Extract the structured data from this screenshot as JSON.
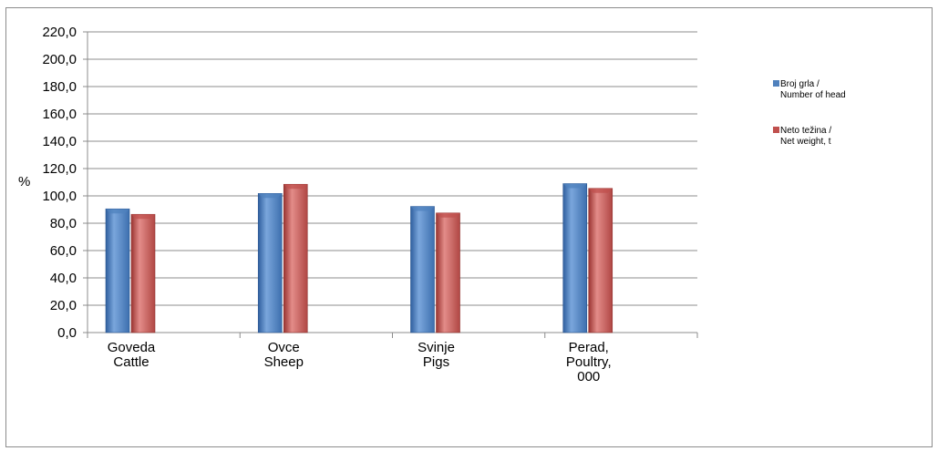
{
  "chart_data": {
    "type": "bar",
    "ylabel": "%",
    "ylim": [
      0,
      220
    ],
    "ytick_step": 20,
    "ytick_labels": [
      "0,0",
      "20,0",
      "40,0",
      "60,0",
      "80,0",
      "100,0",
      "120,0",
      "140,0",
      "160,0",
      "180,0",
      "200,0",
      "220,0"
    ],
    "grid": true,
    "legend_position": "right",
    "categories": [
      [
        "Goveda",
        "Cattle"
      ],
      [
        "Ovce",
        "Sheep"
      ],
      [
        "Svinje",
        "Pigs"
      ],
      [
        "Perad,",
        "Poultry,",
        "000"
      ]
    ],
    "series": [
      {
        "name": [
          "Broj grla /",
          "Number of head"
        ],
        "color": "#4F81BD",
        "values": [
          90.5,
          101.8,
          92.3,
          109.0
        ]
      },
      {
        "name": [
          "Neto težina /",
          "Net weight, t"
        ],
        "color": "#C0504D",
        "values": [
          86.5,
          108.5,
          87.5,
          105.5
        ]
      }
    ]
  }
}
